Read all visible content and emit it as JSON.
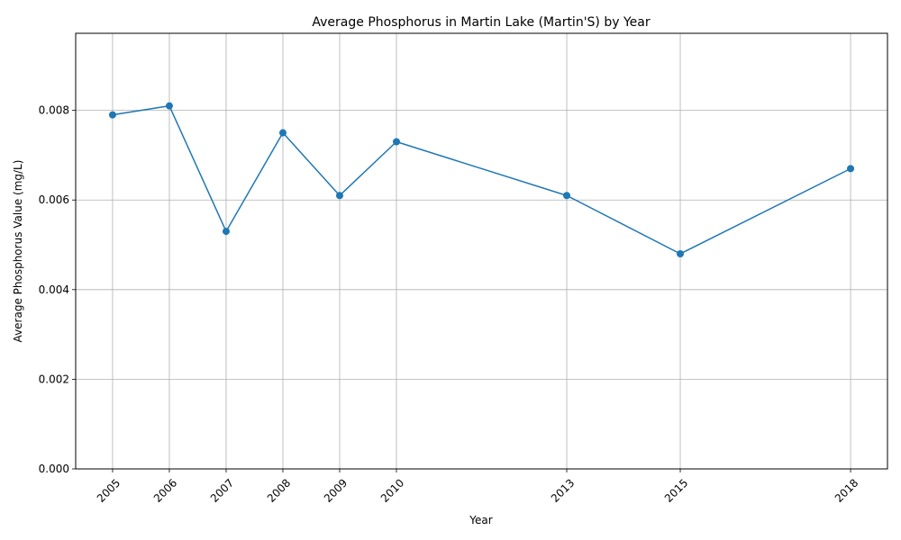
{
  "chart_data": {
    "type": "line",
    "title": "Average Phosphorus in Martin Lake (Martin'S) by Year",
    "xlabel": "Year",
    "ylabel": "Average Phosphorus Value (mg/L)",
    "x": [
      2005,
      2006,
      2007,
      2008,
      2009,
      2010,
      2013,
      2015,
      2018
    ],
    "x_tick_labels": [
      "2005",
      "2006",
      "2007",
      "2008",
      "2009",
      "2010",
      "2013",
      "2015",
      "2018"
    ],
    "series": [
      {
        "values": [
          0.0079,
          0.0081,
          0.0053,
          0.0075,
          0.0061,
          0.0073,
          0.0061,
          0.0048,
          0.0067
        ]
      }
    ],
    "y_ticks": [
      0.0,
      0.002,
      0.004,
      0.006,
      0.008
    ],
    "y_tick_labels": [
      "0.000",
      "0.002",
      "0.004",
      "0.006",
      "0.008"
    ],
    "xlim": [
      2004.35,
      2018.65
    ],
    "ylim": [
      0,
      0.00972
    ],
    "grid": true,
    "colors": {
      "line": "#1f77b4",
      "grid": "#b0b0b0",
      "axis": "#000000"
    }
  }
}
